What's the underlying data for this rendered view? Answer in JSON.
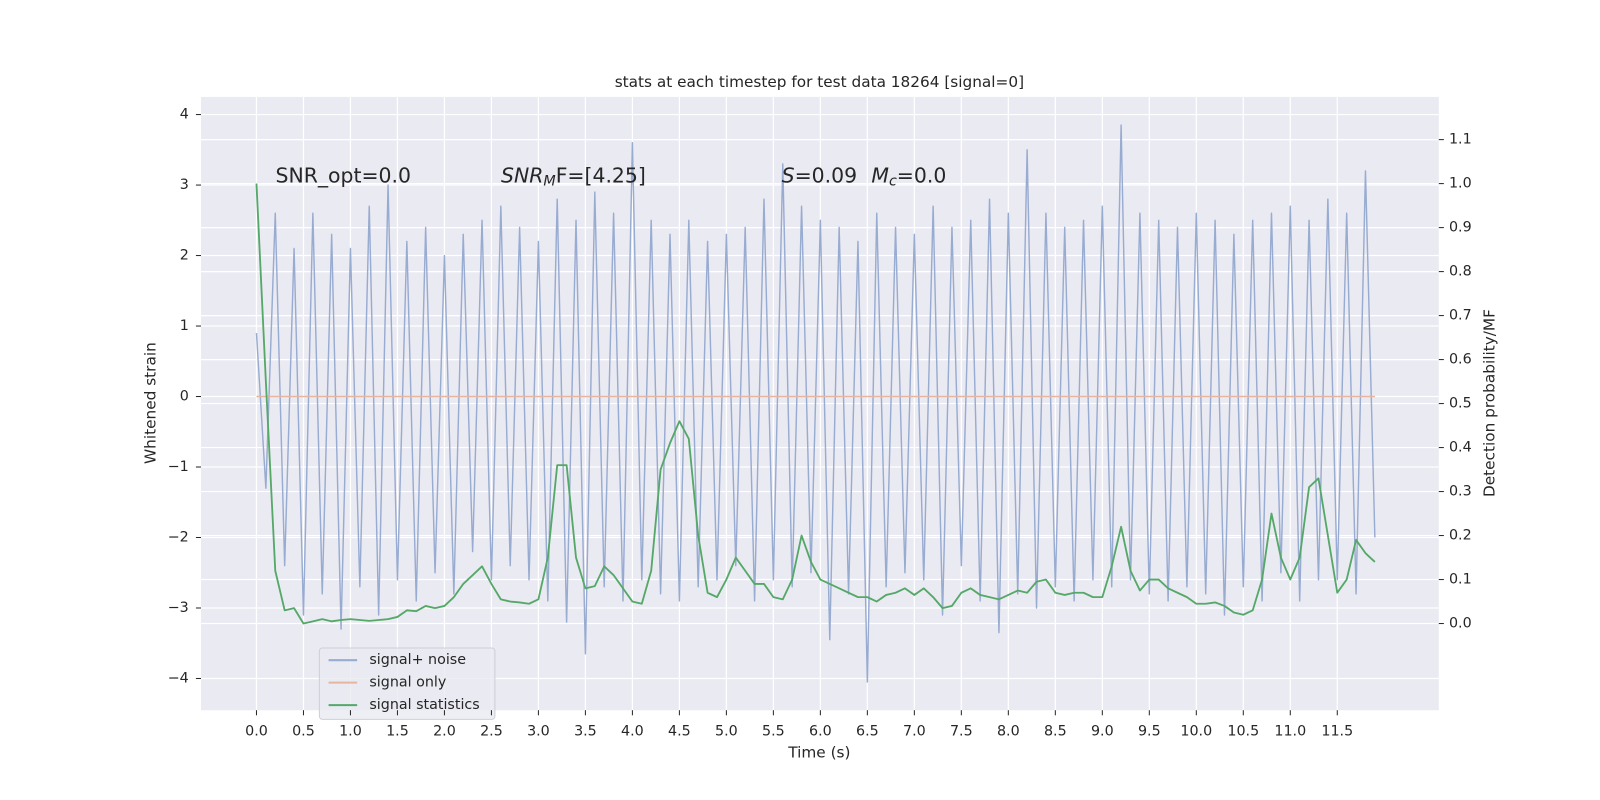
{
  "chart_data": {
    "type": "line",
    "title": "stats at each timestep for test data 18264 [signal=0]",
    "xlabel": "Time (s)",
    "ylabel": "Whitened strain",
    "y2label": "Detection probability/MF",
    "annotations": [
      [
        "SNR_opt=0.0"
      ],
      [
        "SNR",
        "M",
        "F=[4.25]"
      ],
      [
        "S",
        "=0.09",
        "M",
        "c",
        "=0.0"
      ]
    ],
    "grid": true,
    "legend": "lower left",
    "xlim": [
      -0.59,
      12.58
    ],
    "ylim": [
      -4.45,
      4.25
    ],
    "y2lim": [
      -0.197,
      1.197
    ],
    "xticks": [
      {
        "value": 0,
        "label": "0.0"
      },
      0.5,
      {
        "value": 1,
        "label": "1.0"
      },
      1.5,
      {
        "value": 2,
        "label": "2.0"
      },
      2.5,
      {
        "value": 3,
        "label": "3.0"
      },
      3.5,
      {
        "value": 4,
        "label": "4.0"
      },
      4.5,
      {
        "value": 5,
        "label": "5.0"
      },
      5.5,
      {
        "value": 6,
        "label": "6.0"
      },
      6.5,
      {
        "value": 7,
        "label": "7.0"
      },
      7.5,
      {
        "value": 8,
        "label": "8.0"
      },
      8.5,
      {
        "value": 9,
        "label": "9.0"
      },
      9.5,
      {
        "value": 10,
        "label": "10.0"
      },
      10.5,
      {
        "value": 11,
        "label": "11.0"
      },
      11.5
    ],
    "yticks": [
      {
        "value": -4,
        "label": "−4"
      },
      {
        "value": -3,
        "label": "−3"
      },
      {
        "value": -2,
        "label": "−2"
      },
      {
        "value": -1,
        "label": "−1"
      },
      0,
      1,
      2,
      3,
      4
    ],
    "y2ticks": [
      {
        "value": 0,
        "label": "0.0"
      },
      0.1,
      0.2,
      0.3,
      0.4,
      0.5,
      0.6,
      0.7,
      0.8,
      0.9,
      {
        "value": 1,
        "label": "1.0"
      },
      1.1
    ],
    "x": [
      0,
      0.1,
      0.2,
      0.3,
      0.4,
      0.5,
      0.6,
      0.7,
      0.8,
      0.9,
      1,
      1.1,
      1.2,
      1.3,
      1.4,
      1.5,
      1.6,
      1.7,
      1.8,
      1.9,
      2,
      2.1,
      2.2,
      2.3,
      2.4,
      2.5,
      2.6,
      2.7,
      2.8,
      2.9,
      3,
      3.1,
      3.2,
      3.3,
      3.4,
      3.5,
      3.6,
      3.7,
      3.8,
      3.9,
      4,
      4.1,
      4.2,
      4.3,
      4.4,
      4.5,
      4.6,
      4.7,
      4.8,
      4.9,
      5,
      5.1,
      5.2,
      5.3,
      5.4,
      5.5,
      5.6,
      5.7,
      5.8,
      5.9,
      6,
      6.1,
      6.2,
      6.3,
      6.4,
      6.5,
      6.6,
      6.7,
      6.8,
      6.9,
      7,
      7.1,
      7.2,
      7.3,
      7.4,
      7.5,
      7.6,
      7.7,
      7.8,
      7.9,
      8,
      8.1,
      8.2,
      8.3,
      8.4,
      8.5,
      8.6,
      8.7,
      8.8,
      8.9,
      9,
      9.1,
      9.2,
      9.3,
      9.4,
      9.5,
      9.6,
      9.7,
      9.8,
      9.9,
      10,
      10.1,
      10.2,
      10.3,
      10.4,
      10.5,
      10.6,
      10.7,
      10.8,
      10.9,
      11,
      11.1,
      11.2,
      11.3,
      11.4,
      11.5,
      11.6,
      11.7,
      11.8,
      11.9
    ],
    "series": [
      {
        "name": "signal+ noise",
        "color": "#98abd1",
        "values": [
          0.9,
          -1.3,
          2.6,
          -2.4,
          2.1,
          -3.1,
          2.6,
          -2.8,
          2.3,
          -3.3,
          2.1,
          -2.7,
          2.7,
          -3.1,
          3.0,
          -2.6,
          2.2,
          -2.9,
          2.4,
          -2.5,
          2.0,
          -2.8,
          2.3,
          -2.2,
          2.5,
          -2.6,
          2.7,
          -2.4,
          2.4,
          -2.6,
          2.2,
          -2.9,
          2.8,
          -3.2,
          2.5,
          -3.65,
          2.9,
          -2.7,
          2.6,
          -2.9,
          3.6,
          -2.6,
          2.5,
          -2.8,
          2.3,
          -2.9,
          2.5,
          -2.7,
          2.2,
          -2.6,
          2.3,
          -2.4,
          2.4,
          -2.9,
          2.8,
          -2.6,
          3.3,
          -2.7,
          2.7,
          -2.5,
          2.5,
          -3.45,
          2.4,
          -2.8,
          2.2,
          -4.05,
          2.6,
          -2.7,
          2.4,
          -2.5,
          2.3,
          -2.6,
          2.7,
          -3.1,
          2.4,
          -2.4,
          2.5,
          -2.9,
          2.8,
          -3.35,
          2.6,
          -2.8,
          3.5,
          -3.0,
          2.6,
          -2.7,
          2.4,
          -2.9,
          2.5,
          -2.6,
          2.7,
          -2.7,
          3.85,
          -2.6,
          2.6,
          -2.8,
          2.5,
          -2.9,
          2.4,
          -2.7,
          2.6,
          -2.8,
          2.5,
          -3.1,
          2.3,
          -2.7,
          2.5,
          -2.9,
          2.6,
          -2.5,
          2.7,
          -2.9,
          2.5,
          -2.6,
          2.8,
          -2.6,
          2.6,
          -2.8,
          3.2,
          -2.0
        ]
      },
      {
        "name": "signal only",
        "color": "#e6b5a0",
        "values": [
          0,
          0,
          0,
          0,
          0,
          0,
          0,
          0,
          0,
          0,
          0,
          0,
          0,
          0,
          0,
          0,
          0,
          0,
          0,
          0,
          0,
          0,
          0,
          0,
          0,
          0,
          0,
          0,
          0,
          0,
          0,
          0,
          0,
          0,
          0,
          0,
          0,
          0,
          0,
          0,
          0,
          0,
          0,
          0,
          0,
          0,
          0,
          0,
          0,
          0,
          0,
          0,
          0,
          0,
          0,
          0,
          0,
          0,
          0,
          0,
          0,
          0,
          0,
          0,
          0,
          0,
          0,
          0,
          0,
          0,
          0,
          0,
          0,
          0,
          0,
          0,
          0,
          0,
          0,
          0,
          0,
          0,
          0,
          0,
          0,
          0,
          0,
          0,
          0,
          0,
          0,
          0,
          0,
          0,
          0,
          0,
          0,
          0,
          0,
          0,
          0,
          0,
          0,
          0,
          0,
          0,
          0,
          0,
          0,
          0,
          0,
          0,
          0,
          0,
          0,
          0,
          0,
          0,
          0,
          0
        ]
      },
      {
        "name": "signal statistics",
        "color": "#55a868",
        "axis": "y2",
        "values": [
          1.0,
          0.55,
          0.12,
          0.03,
          0.035,
          0.0,
          0.005,
          0.01,
          0.005,
          0.008,
          0.01,
          0.008,
          0.006,
          0.008,
          0.01,
          0.015,
          0.03,
          0.028,
          0.04,
          0.035,
          0.04,
          0.06,
          0.09,
          0.11,
          0.13,
          0.09,
          0.055,
          0.05,
          0.048,
          0.045,
          0.055,
          0.15,
          0.36,
          0.36,
          0.15,
          0.08,
          0.085,
          0.13,
          0.11,
          0.08,
          0.05,
          0.045,
          0.12,
          0.35,
          0.41,
          0.46,
          0.42,
          0.2,
          0.07,
          0.06,
          0.1,
          0.15,
          0.12,
          0.09,
          0.09,
          0.06,
          0.055,
          0.1,
          0.2,
          0.14,
          0.1,
          0.09,
          0.08,
          0.07,
          0.06,
          0.06,
          0.05,
          0.065,
          0.07,
          0.08,
          0.065,
          0.08,
          0.06,
          0.035,
          0.04,
          0.07,
          0.08,
          0.065,
          0.06,
          0.055,
          0.065,
          0.075,
          0.07,
          0.095,
          0.1,
          0.07,
          0.065,
          0.07,
          0.07,
          0.06,
          0.06,
          0.13,
          0.22,
          0.12,
          0.075,
          0.1,
          0.1,
          0.08,
          0.07,
          0.06,
          0.045,
          0.045,
          0.048,
          0.04,
          0.025,
          0.02,
          0.03,
          0.1,
          0.25,
          0.15,
          0.1,
          0.15,
          0.31,
          0.33,
          0.2,
          0.07,
          0.1,
          0.19,
          0.16,
          0.14
        ]
      }
    ]
  }
}
